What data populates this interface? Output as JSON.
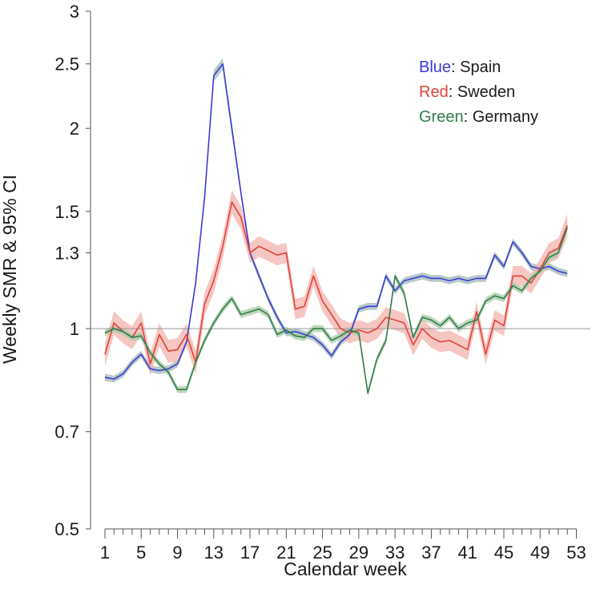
{
  "chart_data": {
    "type": "line",
    "xlabel": "Calendar week",
    "ylabel": "Weekly SMR & 95% CI",
    "yscale": "log",
    "xlim": [
      -1,
      54
    ],
    "ylim": [
      0.5,
      3
    ],
    "xticks": [
      1,
      5,
      9,
      13,
      17,
      21,
      25,
      29,
      33,
      37,
      41,
      45,
      49,
      53
    ],
    "xtick_labels": [
      "1",
      "5",
      "9",
      "13",
      "17",
      "21",
      "25",
      "29",
      "33",
      "37",
      "41",
      "45",
      "49",
      "53"
    ],
    "yticks": [
      0.5,
      0.7,
      1,
      1.3,
      1.5,
      2,
      2.5,
      3
    ],
    "ytick_labels": [
      "0.5",
      "0.7",
      "1",
      "1.3",
      "1.5",
      "2",
      "2.5",
      "3"
    ],
    "reference_line": 1,
    "legend": {
      "position": "top-right",
      "entries": [
        {
          "color_word": "Blue",
          "sep": ":",
          "name": "Spain",
          "color": "#3b3bd8"
        },
        {
          "color_word": "Red",
          "sep": ":",
          "name": "Sweden",
          "color": "#e2433a"
        },
        {
          "color_word": "Green",
          "sep": ":",
          "name": "Germany",
          "color": "#2f7d4a"
        }
      ]
    },
    "x": [
      1,
      2,
      3,
      4,
      5,
      6,
      7,
      8,
      9,
      10,
      11,
      12,
      13,
      14,
      15,
      16,
      17,
      18,
      19,
      20,
      21,
      22,
      23,
      24,
      25,
      26,
      27,
      28,
      29,
      30,
      31,
      32,
      33,
      34,
      35,
      36,
      37,
      38,
      39,
      40,
      41,
      42,
      43,
      44,
      45,
      46,
      47,
      48,
      49,
      50,
      51,
      52
    ],
    "series": [
      {
        "color": "#3b3bd8",
        "band_color": "#9fb8b6",
        "values": [
          0.845,
          0.84,
          0.855,
          0.89,
          0.915,
          0.87,
          0.865,
          0.87,
          0.885,
          0.955,
          1.17,
          1.58,
          2.4,
          2.5,
          2.0,
          1.6,
          1.3,
          1.2,
          1.11,
          1.04,
          0.985,
          0.99,
          0.98,
          0.97,
          0.945,
          0.91,
          0.955,
          0.98,
          1.07,
          1.08,
          1.08,
          1.2,
          1.14,
          1.18,
          1.19,
          1.2,
          1.19,
          1.19,
          1.18,
          1.19,
          1.18,
          1.19,
          1.19,
          1.29,
          1.24,
          1.35,
          1.3,
          1.24,
          1.23,
          1.24,
          1.22,
          1.21
        ],
        "ci": [
          0.012,
          0.012,
          0.012,
          0.012,
          0.012,
          0.012,
          0.012,
          0.012,
          0.012,
          0.012,
          0.012,
          0.015,
          0.02,
          0.02,
          0.02,
          0.015,
          0.012,
          0.012,
          0.012,
          0.012,
          0.012,
          0.012,
          0.012,
          0.012,
          0.012,
          0.012,
          0.012,
          0.012,
          0.012,
          0.012,
          0.012,
          0.012,
          0.012,
          0.012,
          0.012,
          0.012,
          0.012,
          0.012,
          0.012,
          0.012,
          0.012,
          0.012,
          0.012,
          0.012,
          0.012,
          0.012,
          0.012,
          0.012,
          0.012,
          0.012,
          0.012,
          0.012
        ]
      },
      {
        "color": "#e2433a",
        "band_color": "#f2b3ae",
        "values": [
          0.915,
          1.02,
          0.99,
          0.97,
          1.02,
          0.885,
          0.98,
          0.925,
          0.93,
          0.98,
          0.89,
          1.09,
          1.18,
          1.33,
          1.55,
          1.47,
          1.3,
          1.33,
          1.31,
          1.29,
          1.3,
          1.07,
          1.08,
          1.2,
          1.1,
          1.05,
          1.0,
          0.985,
          0.995,
          0.985,
          1.0,
          1.04,
          1.03,
          1.02,
          0.945,
          1.0,
          0.97,
          0.955,
          0.96,
          0.945,
          0.93,
          1.06,
          0.915,
          1.03,
          1.01,
          1.2,
          1.2,
          1.17,
          1.23,
          1.3,
          1.32,
          1.43
        ],
        "ci": [
          0.04,
          0.04,
          0.04,
          0.04,
          0.04,
          0.04,
          0.04,
          0.04,
          0.04,
          0.04,
          0.04,
          0.04,
          0.04,
          0.04,
          0.04,
          0.04,
          0.035,
          0.035,
          0.035,
          0.035,
          0.035,
          0.035,
          0.035,
          0.035,
          0.035,
          0.035,
          0.035,
          0.035,
          0.035,
          0.035,
          0.035,
          0.035,
          0.035,
          0.035,
          0.035,
          0.035,
          0.035,
          0.035,
          0.035,
          0.035,
          0.035,
          0.035,
          0.035,
          0.035,
          0.035,
          0.035,
          0.035,
          0.035,
          0.035,
          0.035,
          0.035,
          0.04
        ]
      },
      {
        "color": "#2f7d4a",
        "band_color": "#a9c9a7",
        "values": [
          0.985,
          1.0,
          0.99,
          0.97,
          0.975,
          0.92,
          0.885,
          0.86,
          0.81,
          0.81,
          0.89,
          0.96,
          1.02,
          1.07,
          1.11,
          1.05,
          1.06,
          1.07,
          1.05,
          0.98,
          0.995,
          0.975,
          0.97,
          1.0,
          1.0,
          0.96,
          0.975,
          0.995,
          0.985,
          0.8,
          0.9,
          0.96,
          1.2,
          1.13,
          0.97,
          1.04,
          1.03,
          1.01,
          1.04,
          1.0,
          1.02,
          1.03,
          1.1,
          1.12,
          1.11,
          1.16,
          1.14,
          1.19,
          1.22,
          1.28,
          1.3,
          1.42
        ],
        "ci": [
          0.012,
          0.012,
          0.012,
          0.012,
          0.012,
          0.012,
          0.012,
          0.012,
          0.012,
          0.012,
          0.012,
          0.012,
          0.012,
          0.012,
          0.012,
          0.012,
          0.012,
          0.012,
          0.012,
          0.012,
          0.012,
          0.012,
          0.012,
          0.012,
          0.012,
          0.012,
          0.012,
          0.012,
          0.012,
          0.012,
          0.012,
          0.012,
          0.012,
          0.012,
          0.012,
          0.012,
          0.012,
          0.012,
          0.012,
          0.012,
          0.012,
          0.012,
          0.012,
          0.012,
          0.012,
          0.012,
          0.012,
          0.012,
          0.012,
          0.012,
          0.012,
          0.012
        ]
      }
    ]
  }
}
